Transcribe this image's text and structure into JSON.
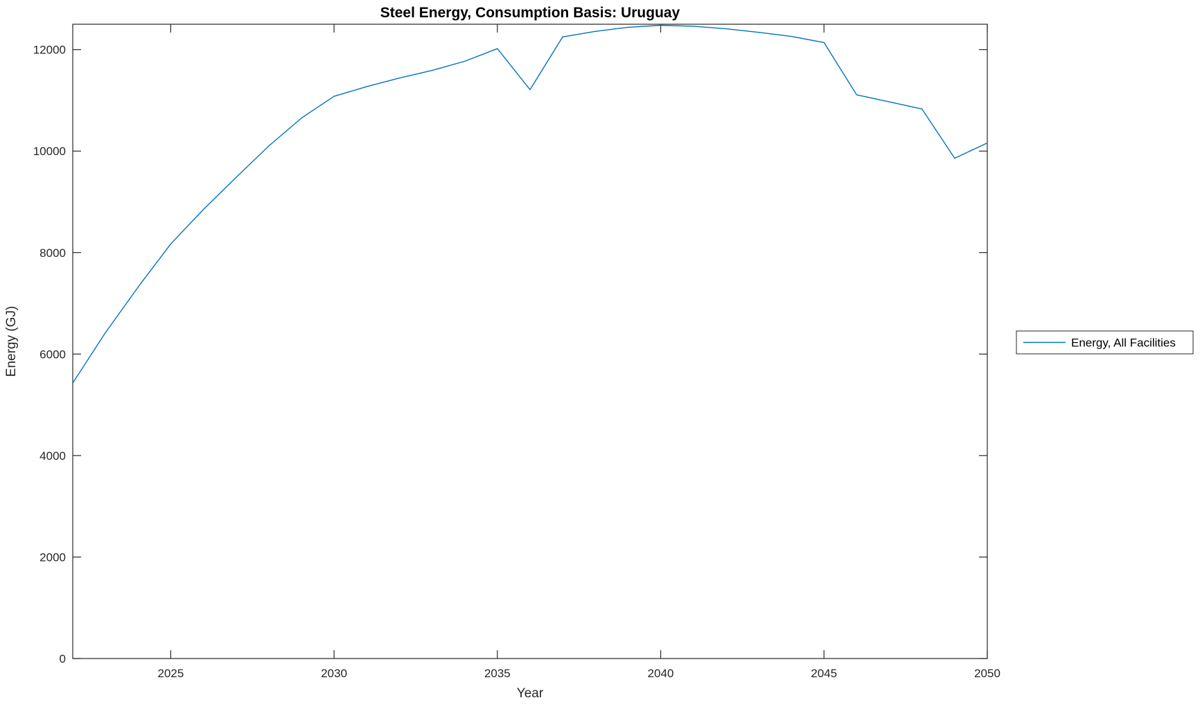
{
  "figure": {
    "background": "#ffffff"
  },
  "colors": {
    "series_blue": "#0072BD",
    "axis": "#262626",
    "title": "#000000",
    "background": "#ffffff"
  },
  "chart_data": {
    "type": "line",
    "title": "Steel Energy, Consumption Basis: Uruguay",
    "xlabel": "Year",
    "ylabel": "Energy (GJ)",
    "xlim": [
      2022,
      2050
    ],
    "ylim": [
      0,
      12500
    ],
    "x_ticks": [
      2025,
      2030,
      2035,
      2040,
      2045,
      2050
    ],
    "y_ticks": [
      0,
      2000,
      4000,
      6000,
      8000,
      10000,
      12000
    ],
    "grid": false,
    "box": true,
    "legend": {
      "position": "right-outside",
      "entries": [
        "Energy, All Facilities"
      ]
    },
    "series": [
      {
        "name": "Energy, All Facilities",
        "color": "#0072BD",
        "x": [
          2022,
          2023,
          2024,
          2025,
          2026,
          2027,
          2028,
          2029,
          2030,
          2031,
          2032,
          2033,
          2034,
          2035,
          2036,
          2037,
          2038,
          2039,
          2040,
          2041,
          2042,
          2043,
          2044,
          2045,
          2046,
          2047,
          2048,
          2049,
          2050
        ],
        "values": [
          5430,
          6420,
          7320,
          8170,
          8850,
          9480,
          10100,
          10650,
          11080,
          11270,
          11440,
          11590,
          11770,
          12020,
          11210,
          12250,
          12360,
          12440,
          12480,
          12460,
          12410,
          12340,
          12260,
          12140,
          11110,
          10970,
          10830,
          9860,
          10160
        ]
      }
    ]
  }
}
